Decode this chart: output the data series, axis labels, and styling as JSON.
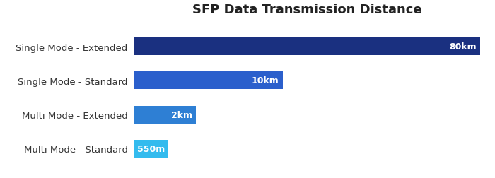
{
  "title": "SFP Data Transmission Distance",
  "categories": [
    "Single Mode - Extended",
    "Single Mode - Standard",
    "Multi Mode - Extended",
    "Multi Mode - Standard"
  ],
  "values": [
    100,
    43,
    18,
    10
  ],
  "labels": [
    "80km",
    "10km",
    "2km",
    "550m"
  ],
  "bar_colors": [
    "#1a3080",
    "#2b5fcc",
    "#2e7fd4",
    "#33bbee"
  ],
  "background_color": "#ffffff",
  "xlim": [
    0,
    100
  ],
  "title_fontsize": 13,
  "label_fontsize": 9,
  "tick_fontsize": 9.5
}
